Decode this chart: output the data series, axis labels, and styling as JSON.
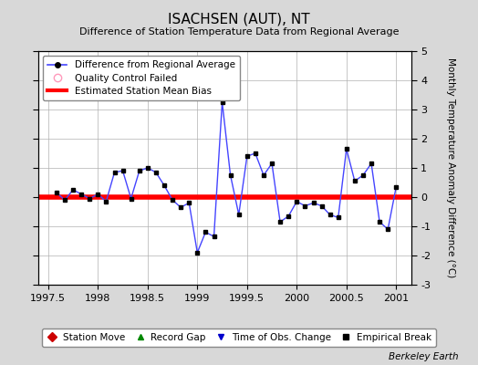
{
  "title": "ISACHSEN (AUT), NT",
  "subtitle": "Difference of Station Temperature Data from Regional Average",
  "ylabel_right": "Monthly Temperature Anomaly Difference (°C)",
  "xlim": [
    1997.4,
    2001.15
  ],
  "ylim": [
    -3,
    5
  ],
  "yticks": [
    -3,
    -2,
    -1,
    0,
    1,
    2,
    3,
    4,
    5
  ],
  "xticks": [
    1997.5,
    1998,
    1998.5,
    1999,
    1999.5,
    2000,
    2000.5,
    2001
  ],
  "bias_value": 0.0,
  "background_color": "#d8d8d8",
  "plot_bg_color": "#ffffff",
  "line_color": "#4444ff",
  "marker_color": "#000000",
  "bias_color": "#ff0000",
  "x_data": [
    1997.583,
    1997.667,
    1997.75,
    1997.833,
    1997.917,
    1998.0,
    1998.083,
    1998.167,
    1998.25,
    1998.333,
    1998.417,
    1998.5,
    1998.583,
    1998.667,
    1998.75,
    1998.833,
    1998.917,
    1999.0,
    1999.083,
    1999.167,
    1999.25,
    1999.333,
    1999.417,
    1999.5,
    1999.583,
    1999.667,
    1999.75,
    1999.833,
    1999.917,
    2000.0,
    2000.083,
    2000.167,
    2000.25,
    2000.333,
    2000.417,
    2000.5,
    2000.583,
    2000.667,
    2000.75,
    2000.833,
    2000.917,
    2001.0
  ],
  "y_data": [
    0.15,
    -0.1,
    0.25,
    0.1,
    -0.05,
    0.1,
    -0.15,
    0.85,
    0.9,
    -0.05,
    0.9,
    1.0,
    0.85,
    0.4,
    -0.1,
    -0.35,
    -0.2,
    -1.9,
    -1.2,
    -1.35,
    3.25,
    0.75,
    -0.6,
    1.4,
    1.5,
    0.75,
    1.15,
    -0.85,
    -0.65,
    -0.15,
    -0.3,
    -0.2,
    -0.3,
    -0.6,
    -0.7,
    1.65,
    0.55,
    0.75,
    1.15,
    -0.85,
    -1.1,
    0.35
  ],
  "footer_text": "Berkeley Earth",
  "legend1_label": "Difference from Regional Average",
  "legend2_label": "Quality Control Failed",
  "legend3_label": "Estimated Station Mean Bias",
  "bottom_legend": [
    "Station Move",
    "Record Gap",
    "Time of Obs. Change",
    "Empirical Break"
  ],
  "bottom_legend_colors": [
    "#cc0000",
    "#008800",
    "#0000cc",
    "#000000"
  ],
  "bottom_legend_markers": [
    "D",
    "^",
    "v",
    "s"
  ]
}
